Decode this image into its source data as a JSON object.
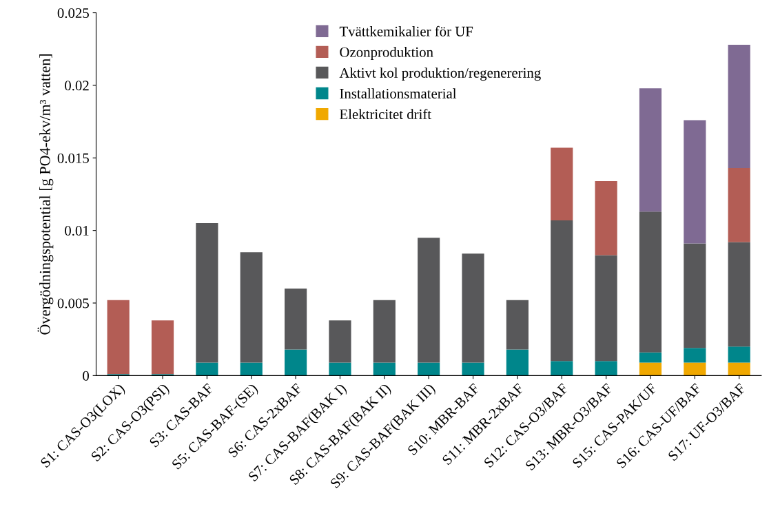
{
  "chart_data": {
    "type": "bar",
    "stacked": true,
    "ylabel": "Övergödningspotential [g PO4-ekv/m³ vatten]",
    "categories": [
      "S1: CAS-O3(LOX)",
      "S2: CAS-O3(PSI)",
      "S3: CAS-BAF",
      "S5: CAS-BAF-(SE)",
      "S6: CAS-2xBAF",
      "S7: CAS-BAF(BAK I)",
      "S8: CAS-BAF(BAK II)",
      "S9: CAS-BAF(BAK III)",
      "S10: MBR-BAF",
      "S11: MBR-2xBAF",
      "S12: CAS-O3/BAF",
      "S13: MBR-O3/BAF",
      "S15: CAS-PAK/UF",
      "S16: CAS-UF/BAF",
      "S17: UF-O3/BAF"
    ],
    "series": [
      {
        "name": "Elektricitet drift",
        "color": "#f0a800",
        "values": [
          null,
          null,
          null,
          null,
          null,
          null,
          null,
          null,
          null,
          null,
          null,
          null,
          0.0009,
          0.0009,
          0.0009
        ]
      },
      {
        "name": "Installationsmaterial",
        "color": "#00868b",
        "values": [
          0.0001,
          0.0001,
          0.0009,
          0.0009,
          0.0018,
          0.0009,
          0.0009,
          0.0009,
          0.0009,
          0.0018,
          0.001,
          0.001,
          0.0007,
          0.001,
          0.0011
        ]
      },
      {
        "name": "Aktivt kol produktion/regenerering",
        "color": "#58585a",
        "values": [
          null,
          null,
          0.0096,
          0.0076,
          0.0042,
          0.0029,
          0.0043,
          0.0086,
          0.0075,
          0.0034,
          0.0097,
          0.0073,
          0.0097,
          0.0072,
          0.0072
        ]
      },
      {
        "name": "Ozonproduktion",
        "color": "#b35d55",
        "values": [
          0.0051,
          0.0037,
          null,
          null,
          null,
          null,
          null,
          null,
          null,
          null,
          0.005,
          0.0051,
          null,
          null,
          0.0051
        ]
      },
      {
        "name": "Tvättkemikalier för UF",
        "color": "#7f6a93",
        "values": [
          null,
          null,
          null,
          null,
          null,
          null,
          null,
          null,
          null,
          null,
          null,
          null,
          0.0085,
          0.0085,
          0.0085
        ]
      }
    ],
    "ylim": [
      0,
      0.025
    ],
    "yticks": [
      0,
      0.005,
      0.01,
      0.015,
      0.02,
      0.025
    ],
    "grid": false,
    "legend": "top"
  }
}
